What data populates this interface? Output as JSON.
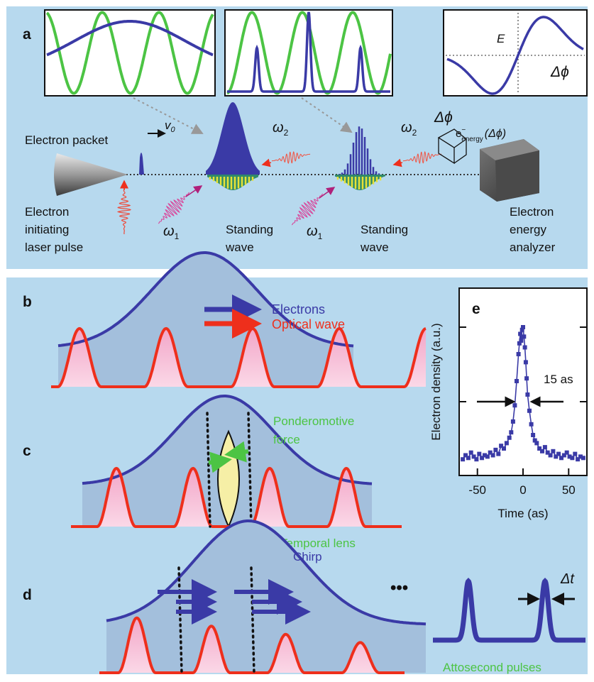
{
  "panels": {
    "a": {
      "label": "a",
      "electron_packet": "Electron packet",
      "v0": "v",
      "v0_sub": "0",
      "omega": "ω",
      "omega1_sub": "1",
      "omega2_sub": "2",
      "delta_phi": "Δϕ",
      "E": "E",
      "energy_axis": "Δϕ",
      "e_energy": "e",
      "e_energy_sup": "−",
      "e_energy_sub": "energy",
      "e_energy_arg": "(Δϕ)",
      "source": [
        "Electron",
        "initiating",
        "laser pulse"
      ],
      "standing_wave_1": [
        "Standing",
        "wave"
      ],
      "standing_wave_2": [
        "Standing",
        "wave"
      ],
      "analyzer": [
        "Electron",
        "energy",
        "analyzer"
      ]
    },
    "b": {
      "label": "b",
      "legend_electrons": "Electrons",
      "legend_optical": "Optical wave"
    },
    "c": {
      "label": "c",
      "ponderomotive": [
        "Ponderomotive",
        "force"
      ],
      "temporal_lens": "Temporal lens"
    },
    "d": {
      "label": "d",
      "chirp": "Chirp",
      "ellipsis": "•••",
      "delta_t": "Δt",
      "attosecond": "Attosecond pulses"
    },
    "e": {
      "label": "e",
      "annotation": "15 as"
    }
  },
  "colors": {
    "background": "#b7d9ee",
    "blue": "#3a3aa6",
    "green": "#4cc444",
    "red": "#ee2f1c",
    "pink": "#f6b8d2",
    "shade": "#a3bfdc",
    "lens": "#f6efa6"
  },
  "chart_data": {
    "type": "scatter",
    "title": "",
    "xlabel": "Time (as)",
    "ylabel": "Electron density (a.u.)",
    "xlim": [
      -70,
      70
    ],
    "x_ticks": [
      "-50",
      "0",
      "50"
    ],
    "x_tick_values": [
      -50,
      0,
      50
    ],
    "grid": false,
    "fwhm_label": "15 as",
    "x": [
      -66,
      -63,
      -60,
      -57,
      -54,
      -51,
      -48,
      -45,
      -42,
      -39,
      -36,
      -33,
      -30,
      -27,
      -24,
      -21,
      -18,
      -15,
      -13,
      -11,
      -9,
      -7,
      -5,
      -4,
      -3,
      -2,
      -1,
      0,
      1,
      2,
      3,
      4,
      5,
      7,
      9,
      11,
      13,
      15,
      18,
      21,
      24,
      27,
      30,
      33,
      36,
      39,
      42,
      45,
      48,
      51,
      54,
      57,
      60,
      63,
      66
    ],
    "y": [
      0.02,
      0.05,
      0.03,
      0.07,
      0.04,
      0.02,
      0.06,
      0.03,
      0.05,
      0.04,
      0.07,
      0.05,
      0.09,
      0.06,
      0.12,
      0.1,
      0.14,
      0.18,
      0.22,
      0.3,
      0.42,
      0.6,
      0.8,
      0.88,
      0.95,
      0.9,
      0.98,
      1.0,
      0.93,
      0.85,
      0.74,
      0.62,
      0.5,
      0.38,
      0.28,
      0.2,
      0.16,
      0.14,
      0.1,
      0.08,
      0.11,
      0.07,
      0.05,
      0.08,
      0.04,
      0.06,
      0.03,
      0.05,
      0.07,
      0.04,
      0.03,
      0.06,
      0.02,
      0.04,
      0.03
    ]
  }
}
